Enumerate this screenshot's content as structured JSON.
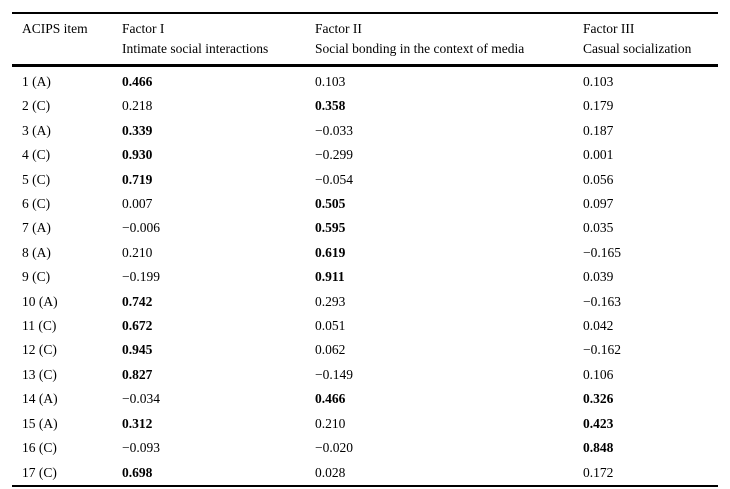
{
  "colors": {
    "text": "#000000",
    "background": "#ffffff",
    "border": "#000000"
  },
  "table": {
    "columns": [
      {
        "label": "ACIPS item",
        "sublabel": ""
      },
      {
        "label": "Factor I",
        "sublabel": "Intimate social interactions"
      },
      {
        "label": "Factor II",
        "sublabel": "Social bonding in the context of media"
      },
      {
        "label": "Factor III",
        "sublabel": "Casual socialization"
      }
    ],
    "rows": [
      {
        "item": "1 (A)",
        "f1": "0.466",
        "f1_bold": true,
        "f2": "0.103",
        "f2_bold": false,
        "f3": "0.103",
        "f3_bold": false
      },
      {
        "item": "2 (C)",
        "f1": "0.218",
        "f1_bold": false,
        "f2": "0.358",
        "f2_bold": true,
        "f3": "0.179",
        "f3_bold": false
      },
      {
        "item": "3 (A)",
        "f1": "0.339",
        "f1_bold": true,
        "f2": "−0.033",
        "f2_bold": false,
        "f3": "0.187",
        "f3_bold": false
      },
      {
        "item": "4 (C)",
        "f1": "0.930",
        "f1_bold": true,
        "f2": "−0.299",
        "f2_bold": false,
        "f3": "0.001",
        "f3_bold": false
      },
      {
        "item": "5 (C)",
        "f1": "0.719",
        "f1_bold": true,
        "f2": "−0.054",
        "f2_bold": false,
        "f3": "0.056",
        "f3_bold": false
      },
      {
        "item": "6 (C)",
        "f1": "0.007",
        "f1_bold": false,
        "f2": "0.505",
        "f2_bold": true,
        "f3": "0.097",
        "f3_bold": false
      },
      {
        "item": "7 (A)",
        "f1": "−0.006",
        "f1_bold": false,
        "f2": "0.595",
        "f2_bold": true,
        "f3": "0.035",
        "f3_bold": false
      },
      {
        "item": "8 (A)",
        "f1": "0.210",
        "f1_bold": false,
        "f2": "0.619",
        "f2_bold": true,
        "f3": "−0.165",
        "f3_bold": false
      },
      {
        "item": "9 (C)",
        "f1": "−0.199",
        "f1_bold": false,
        "f2": "0.911",
        "f2_bold": true,
        "f3": "0.039",
        "f3_bold": false
      },
      {
        "item": "10 (A)",
        "f1": "0.742",
        "f1_bold": true,
        "f2": "0.293",
        "f2_bold": false,
        "f3": "−0.163",
        "f3_bold": false
      },
      {
        "item": "11 (C)",
        "f1": "0.672",
        "f1_bold": true,
        "f2": "0.051",
        "f2_bold": false,
        "f3": "0.042",
        "f3_bold": false
      },
      {
        "item": "12 (C)",
        "f1": "0.945",
        "f1_bold": true,
        "f2": "0.062",
        "f2_bold": false,
        "f3": "−0.162",
        "f3_bold": false
      },
      {
        "item": "13 (C)",
        "f1": "0.827",
        "f1_bold": true,
        "f2": "−0.149",
        "f2_bold": false,
        "f3": "0.106",
        "f3_bold": false
      },
      {
        "item": "14 (A)",
        "f1": "−0.034",
        "f1_bold": false,
        "f2": "0.466",
        "f2_bold": true,
        "f3": "0.326",
        "f3_bold": true
      },
      {
        "item": "15 (A)",
        "f1": "0.312",
        "f1_bold": true,
        "f2": "0.210",
        "f2_bold": false,
        "f3": "0.423",
        "f3_bold": true
      },
      {
        "item": "16 (C)",
        "f1": "−0.093",
        "f1_bold": false,
        "f2": "−0.020",
        "f2_bold": false,
        "f3": "0.848",
        "f3_bold": true
      },
      {
        "item": "17 (C)",
        "f1": "0.698",
        "f1_bold": true,
        "f2": "0.028",
        "f2_bold": false,
        "f3": "0.172",
        "f3_bold": false
      }
    ]
  }
}
